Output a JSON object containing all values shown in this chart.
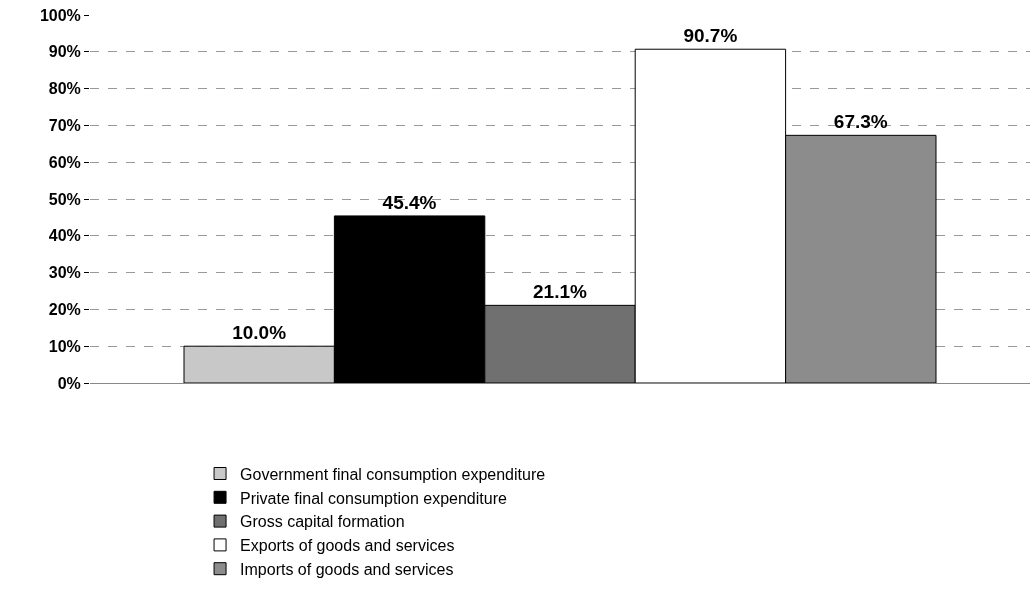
{
  "chart_data": {
    "type": "bar",
    "categories": [
      null
    ],
    "series": [
      {
        "name": "Government final consumption expenditure",
        "color": "#c8c8c8",
        "values": [
          10.0
        ],
        "value_labels": [
          "10.0%"
        ]
      },
      {
        "name": "Private final consumption expenditure",
        "color": "#000000",
        "values": [
          45.4
        ],
        "value_labels": [
          "45.4%"
        ]
      },
      {
        "name": "Gross capital formation",
        "color": "#707070",
        "values": [
          21.1
        ],
        "value_labels": [
          "21.1%"
        ]
      },
      {
        "name": "Exports of goods and services",
        "color": "#ffffff",
        "values": [
          90.7
        ],
        "value_labels": [
          "90.7%"
        ]
      },
      {
        "name": "Imports of goods and services",
        "color": "#8c8c8c",
        "values": [
          67.3
        ],
        "value_labels": [
          "67.3%"
        ]
      }
    ],
    "ylim": [
      0,
      100
    ],
    "yticks": [
      {
        "value": 0,
        "label": "0%"
      },
      {
        "value": 10,
        "label": "10%"
      },
      {
        "value": 20,
        "label": "20%"
      },
      {
        "value": 30,
        "label": "30%"
      },
      {
        "value": 40,
        "label": "40%"
      },
      {
        "value": 50,
        "label": "50%"
      },
      {
        "value": 60,
        "label": "60%"
      },
      {
        "value": 70,
        "label": "70%"
      },
      {
        "value": 80,
        "label": "80%"
      },
      {
        "value": 90,
        "label": "90%"
      },
      {
        "value": 100,
        "label": "100%"
      }
    ],
    "grid": "y",
    "legend": "bottom",
    "tick_labels": "y"
  }
}
